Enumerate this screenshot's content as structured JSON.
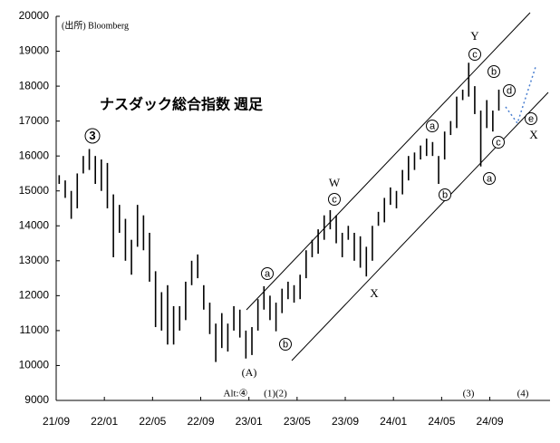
{
  "chart_data": {
    "type": "range_bar",
    "title": "ナスダック総合指数 週足",
    "source": "(出所) Bloomberg",
    "color": "#000000",
    "categories": [
      null,
      null,
      null,
      null,
      null,
      null,
      null,
      null,
      null,
      null,
      null,
      null,
      null,
      null,
      null,
      null,
      null,
      null,
      null,
      null,
      null,
      null,
      null,
      null,
      null,
      null,
      null,
      null,
      null,
      null,
      null,
      null,
      null,
      null,
      null,
      null,
      null,
      null,
      null,
      null,
      null,
      null,
      null,
      null,
      null,
      null,
      null,
      null,
      null,
      null,
      null,
      null,
      null,
      null,
      null,
      null,
      null,
      null,
      null,
      null,
      null,
      null,
      null,
      null,
      null,
      null,
      null,
      null,
      null,
      null,
      null,
      null,
      null,
      null
    ],
    "low": [
      15200,
      14800,
      14200,
      14500,
      15500,
      15600,
      15200,
      15000,
      14500,
      13100,
      13800,
      13000,
      12600,
      13400,
      13300,
      12400,
      11100,
      11000,
      10600,
      10600,
      11000,
      11300,
      12300,
      12500,
      11600,
      10900,
      10100,
      10500,
      10400,
      11000,
      10800,
      10200,
      10300,
      11000,
      11600,
      11300,
      10980,
      11500,
      11900,
      11800,
      11900,
      12500,
      13100,
      13200,
      13600,
      13900,
      13500,
      13100,
      13600,
      13000,
      12800,
      12550,
      13000,
      14000,
      14100,
      14600,
      14500,
      14900,
      15300,
      15600,
      15900,
      16000,
      16000,
      15200,
      15900,
      16600,
      16800,
      17600,
      17700,
      17200,
      15700,
      16800,
      16700,
      17300
    ],
    "high": [
      15450,
      15300,
      15000,
      15500,
      16000,
      16200,
      16000,
      15900,
      15800,
      14900,
      14600,
      14200,
      13600,
      14600,
      14300,
      13800,
      12700,
      12100,
      12300,
      11700,
      11700,
      12400,
      13000,
      13180,
      12300,
      11800,
      11200,
      11500,
      11200,
      11700,
      11600,
      11000,
      11100,
      11900,
      12270,
      12000,
      11800,
      12200,
      12400,
      12300,
      12600,
      13300,
      13600,
      13900,
      14300,
      14450,
      14300,
      13800,
      14000,
      13800,
      13700,
      13400,
      14000,
      14400,
      14800,
      15100,
      15000,
      15600,
      16000,
      16100,
      16300,
      16500,
      16400,
      16000,
      16700,
      17000,
      17700,
      17900,
      18670,
      18000,
      17300,
      17600,
      17300,
      17900
    ],
    "xlim": [
      0,
      82
    ],
    "xticks": [
      {
        "value": 0,
        "label": "21/09"
      },
      {
        "value": 8,
        "label": "22/01"
      },
      {
        "value": 16,
        "label": "22/05"
      },
      {
        "value": 24,
        "label": "22/09"
      },
      {
        "value": 32,
        "label": "23/01"
      },
      {
        "value": 40,
        "label": "23/05"
      },
      {
        "value": 48,
        "label": "23/09"
      },
      {
        "value": 56,
        "label": "24/01"
      },
      {
        "value": 64,
        "label": "24/05"
      },
      {
        "value": 72,
        "label": "24/09"
      }
    ],
    "ylim": [
      9000,
      20000
    ],
    "yticks": [
      9000,
      10000,
      11000,
      12000,
      13000,
      14000,
      15000,
      16000,
      17000,
      18000,
      19000,
      20000
    ],
    "annotations": [
      "3",
      "a",
      "b",
      "W",
      "c",
      "X",
      "a",
      "b",
      "Y",
      "c",
      "b",
      "d",
      "e",
      "X",
      "c",
      "a",
      "(A)",
      "Alt:④",
      "(1)(2)",
      "(3)",
      "(4)"
    ]
  }
}
